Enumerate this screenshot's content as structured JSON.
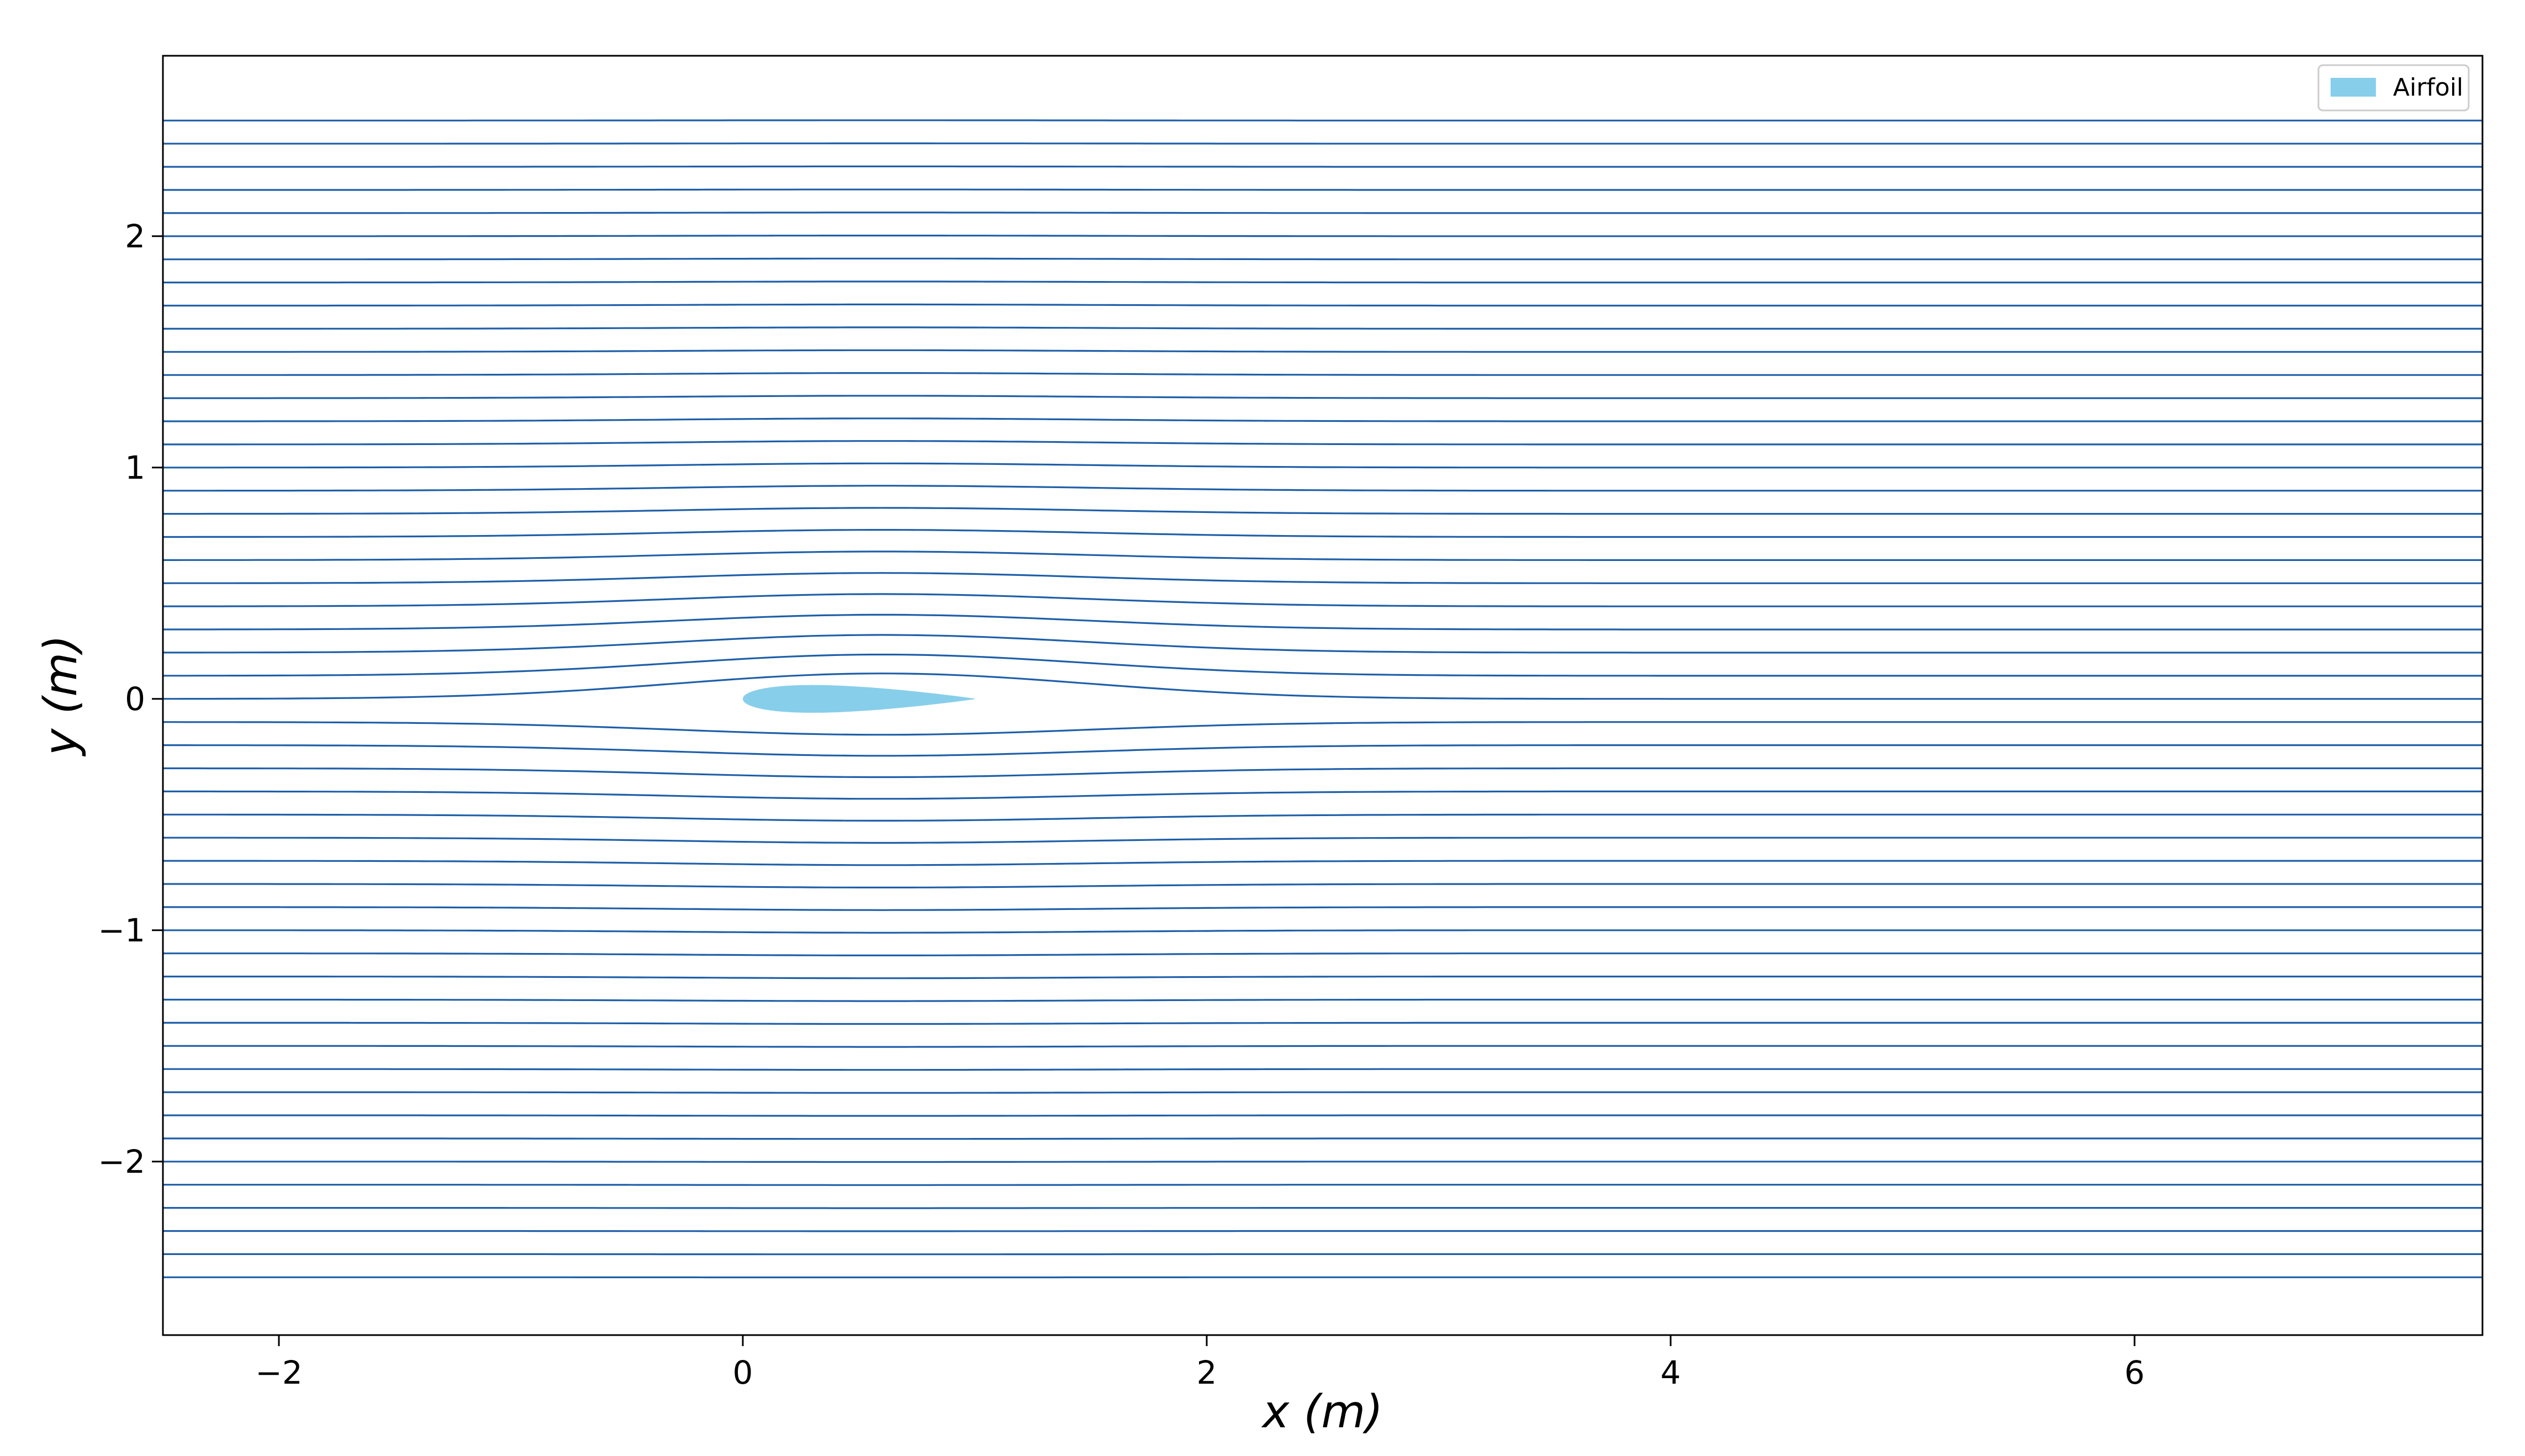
{
  "chart_data": {
    "type": "line",
    "title": "",
    "xlabel": "x (m)",
    "ylabel": "y (m)",
    "xlim": [
      -2.5,
      7.5
    ],
    "ylim": [
      -2.75,
      2.78
    ],
    "xticks": [
      -2,
      0,
      2,
      4,
      6
    ],
    "yticks": [
      -2,
      -1,
      0,
      1,
      2
    ],
    "xtick_labels": [
      "−2",
      "0",
      "2",
      "4",
      "6"
    ],
    "ytick_labels": [
      "−2",
      "−1",
      "0",
      "1",
      "2"
    ],
    "grid": false,
    "legend": {
      "placement": "top-right",
      "entries": [
        {
          "label": "Airfoil",
          "color": "#87ceeb"
        }
      ]
    },
    "streamlines": {
      "color": "#1f5fa8",
      "count": 51,
      "y_start": -2.5,
      "y_end": 2.5,
      "x_range": [
        -2.5,
        7.5
      ]
    },
    "airfoil": {
      "name": "Airfoil",
      "color": "#87ceeb",
      "chord": 1.0,
      "max_thickness": 0.12,
      "leading_edge": [
        0,
        0
      ]
    }
  }
}
